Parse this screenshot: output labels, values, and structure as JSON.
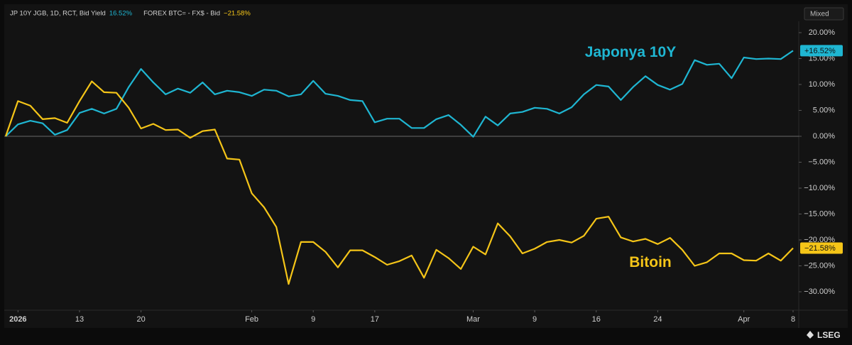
{
  "chart_data": {
    "type": "line",
    "x_labels": [
      "2026",
      "13",
      "20",
      "Feb",
      "9",
      "17",
      "Mar",
      "9",
      "16",
      "24",
      "Apr",
      "8"
    ],
    "x_label_index": [
      1,
      6,
      11,
      20,
      25,
      30,
      38,
      43,
      48,
      53,
      60,
      64
    ],
    "point_count": 65,
    "series": [
      {
        "name": "JP 10Y JGB, 1D, RCT, Bid Yield",
        "legend_value": "16.52%",
        "end_label": "+16.52%",
        "annotation": "Japonya 10Y",
        "color": "#1fb6d2",
        "values": [
          0,
          2.3,
          3.0,
          2.5,
          0.3,
          1.2,
          4.5,
          5.3,
          4.4,
          5.3,
          9.5,
          13.0,
          10.4,
          8.1,
          9.2,
          8.4,
          10.4,
          8.1,
          8.8,
          8.5,
          7.8,
          9.0,
          8.8,
          7.7,
          8.1,
          10.7,
          8.2,
          7.8,
          7.0,
          6.8,
          2.7,
          3.4,
          3.4,
          1.6,
          1.6,
          3.3,
          4.1,
          2.2,
          -0.1,
          3.8,
          2.1,
          4.4,
          4.7,
          5.5,
          5.3,
          4.4,
          5.6,
          8.1,
          9.9,
          9.6,
          7.0,
          9.5,
          11.6,
          9.9,
          9.0,
          10.1,
          14.7,
          13.8,
          14.0,
          11.2,
          15.2,
          14.9,
          15.0,
          14.9,
          16.52
        ]
      },
      {
        "name": "FOREX BTC= - FX$ - Bid",
        "legend_value": "−21.58%",
        "end_label": "−21.58%",
        "annotation": "Bitoin",
        "color": "#f5c518",
        "values": [
          0,
          6.8,
          5.9,
          3.3,
          3.5,
          2.6,
          6.8,
          10.6,
          8.5,
          8.4,
          5.5,
          1.5,
          2.4,
          1.2,
          1.3,
          -0.3,
          1.0,
          1.3,
          -4.3,
          -4.5,
          -11.0,
          -13.7,
          -17.5,
          -28.5,
          -20.4,
          -20.4,
          -22.3,
          -25.3,
          -22.0,
          -22.0,
          -23.3,
          -24.8,
          -24.1,
          -23.0,
          -27.3,
          -21.9,
          -23.5,
          -25.6,
          -21.3,
          -22.8,
          -16.8,
          -19.3,
          -22.6,
          -21.7,
          -20.4,
          -20.0,
          -20.5,
          -19.2,
          -15.9,
          -15.5,
          -19.5,
          -20.3,
          -19.8,
          -20.8,
          -19.6,
          -21.9,
          -25.0,
          -24.3,
          -22.6,
          -22.6,
          -23.9,
          -24.0,
          -22.6,
          -24.0,
          -21.58
        ]
      }
    ],
    "ylim": [
      -33.56,
      22.19
    ],
    "yticks": [
      {
        "value": 20,
        "label": "20.00%"
      },
      {
        "value": 15,
        "label": "15.00%"
      },
      {
        "value": 10,
        "label": "10.00%"
      },
      {
        "value": 5,
        "label": "5.00%"
      },
      {
        "value": 0,
        "label": "0.00%"
      },
      {
        "value": -5,
        "label": "−5.00%"
      },
      {
        "value": -10,
        "label": "−10.00%"
      },
      {
        "value": -15,
        "label": "−15.00%"
      },
      {
        "value": -20,
        "label": "−20.00%"
      },
      {
        "value": -25,
        "label": "−25.00%"
      },
      {
        "value": -30,
        "label": "−30.00%"
      }
    ],
    "zero_line": true,
    "scale_button": "Mixed",
    "logo": "LSEG"
  }
}
